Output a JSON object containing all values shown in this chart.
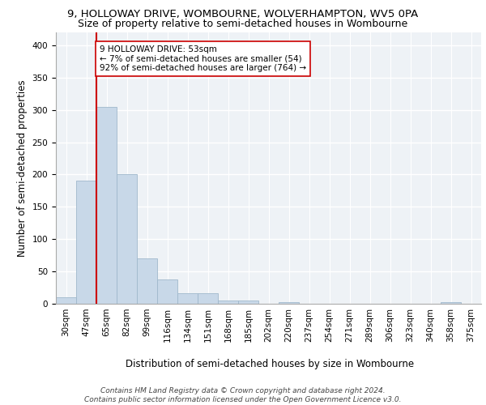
{
  "title_line1": "9, HOLLOWAY DRIVE, WOMBOURNE, WOLVERHAMPTON, WV5 0PA",
  "title_line2": "Size of property relative to semi-detached houses in Wombourne",
  "xlabel": "Distribution of semi-detached houses by size in Wombourne",
  "ylabel": "Number of semi-detached properties",
  "footer_line1": "Contains HM Land Registry data © Crown copyright and database right 2024.",
  "footer_line2": "Contains public sector information licensed under the Open Government Licence v3.0.",
  "bar_labels": [
    "30sqm",
    "47sqm",
    "65sqm",
    "82sqm",
    "99sqm",
    "116sqm",
    "134sqm",
    "151sqm",
    "168sqm",
    "185sqm",
    "202sqm",
    "220sqm",
    "237sqm",
    "254sqm",
    "271sqm",
    "289sqm",
    "306sqm",
    "323sqm",
    "340sqm",
    "358sqm",
    "375sqm"
  ],
  "bar_values": [
    10,
    190,
    305,
    200,
    70,
    37,
    16,
    16,
    5,
    5,
    0,
    3,
    0,
    0,
    0,
    0,
    0,
    0,
    0,
    3,
    0
  ],
  "bar_color": "#c8d8e8",
  "bar_edgecolor": "#a0b8cc",
  "property_line_x": 1.5,
  "annotation_title": "9 HOLLOWAY DRIVE: 53sqm",
  "annotation_line2": "← 7% of semi-detached houses are smaller (54)",
  "annotation_line3": "92% of semi-detached houses are larger (764) →",
  "vline_color": "#cc0000",
  "annotation_box_edgecolor": "#cc0000",
  "ylim": [
    0,
    420
  ],
  "yticks": [
    0,
    50,
    100,
    150,
    200,
    250,
    300,
    350,
    400
  ],
  "background_color": "#eef2f6",
  "grid_color": "#ffffff",
  "title_fontsize": 9.5,
  "subtitle_fontsize": 9,
  "axis_label_fontsize": 8.5,
  "tick_fontsize": 7.5,
  "annotation_fontsize": 7.5,
  "footer_fontsize": 6.5
}
